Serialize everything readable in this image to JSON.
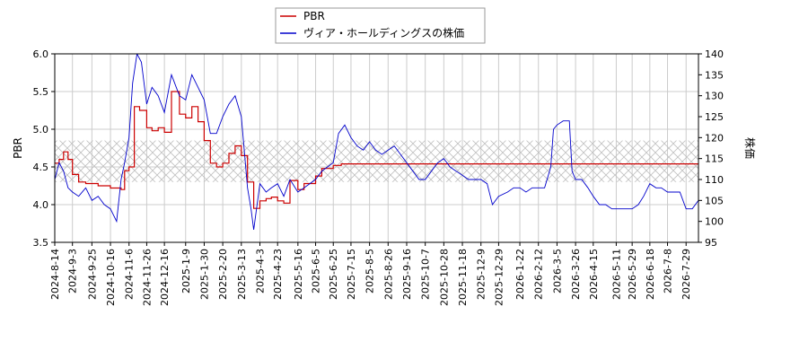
{
  "chart_data": {
    "type": "line",
    "title": "",
    "legend": {
      "placement": "top-center",
      "entries": [
        {
          "label": "PBR",
          "color": "#cc0000"
        },
        {
          "label": "ヴィア・ホールディングスの株価",
          "color": "#0000cc"
        }
      ]
    },
    "ylabel_left": "PBR",
    "ylabel_right": "株価",
    "ylim_left": [
      3.5,
      6.0
    ],
    "ylim_right": [
      95,
      140
    ],
    "yticks_left": [
      "3.5",
      "4.0",
      "4.5",
      "5.0",
      "5.5",
      "6.0"
    ],
    "yticks_right": [
      "95",
      "100",
      "105",
      "110",
      "115",
      "120",
      "125",
      "130",
      "135",
      "140"
    ],
    "xlim": [
      "2024-08-14",
      "2026-08-12"
    ],
    "xticks": [
      "2024-8-14",
      "2024-9-3",
      "2024-9-25",
      "2024-10-16",
      "2024-11-6",
      "2024-11-26",
      "2024-12-16",
      "2025-1-9",
      "2025-1-30",
      "2025-2-20",
      "2025-3-13",
      "2025-4-3",
      "2025-4-23",
      "2025-5-16",
      "2025-6-5",
      "2025-6-25",
      "2025-7-15",
      "2025-8-5",
      "2025-8-26",
      "2025-9-16",
      "2025-10-7",
      "2025-10-28",
      "2025-11-18",
      "2025-12-9",
      "2025-12-29",
      "2026-1-22",
      "2026-2-12",
      "2026-3-5",
      "2026-3-26",
      "2026-4-15",
      "2026-5-11",
      "2026-5-29",
      "2026-6-18",
      "2026-7-8",
      "2026-7-29"
    ],
    "grid": true,
    "band": {
      "axis": "left",
      "range": [
        4.3,
        4.85
      ],
      "pattern": "crosshatch"
    },
    "series": [
      {
        "name": "PBR",
        "axis": "left",
        "color": "#cc0000",
        "points": [
          [
            "2024-08-14",
            4.55
          ],
          [
            "2024-08-19",
            4.6
          ],
          [
            "2024-08-24",
            4.7
          ],
          [
            "2024-08-29",
            4.6
          ],
          [
            "2024-09-03",
            4.4
          ],
          [
            "2024-09-10",
            4.3
          ],
          [
            "2024-09-18",
            4.28
          ],
          [
            "2024-10-02",
            4.25
          ],
          [
            "2024-10-16",
            4.22
          ],
          [
            "2024-10-28",
            4.2
          ],
          [
            "2024-11-01",
            4.45
          ],
          [
            "2024-11-06",
            4.5
          ],
          [
            "2024-11-12",
            5.3
          ],
          [
            "2024-11-18",
            5.25
          ],
          [
            "2024-11-26",
            5.02
          ],
          [
            "2024-12-02",
            4.98
          ],
          [
            "2024-12-09",
            5.02
          ],
          [
            "2024-12-16",
            4.96
          ],
          [
            "2024-12-24",
            5.5
          ],
          [
            "2025-01-02",
            5.2
          ],
          [
            "2025-01-09",
            5.15
          ],
          [
            "2025-01-16",
            5.3
          ],
          [
            "2025-01-23",
            5.1
          ],
          [
            "2025-01-30",
            4.85
          ],
          [
            "2025-02-06",
            4.55
          ],
          [
            "2025-02-13",
            4.5
          ],
          [
            "2025-02-20",
            4.55
          ],
          [
            "2025-02-27",
            4.68
          ],
          [
            "2025-03-06",
            4.78
          ],
          [
            "2025-03-13",
            4.65
          ],
          [
            "2025-03-20",
            4.3
          ],
          [
            "2025-03-27",
            3.95
          ],
          [
            "2025-04-03",
            4.05
          ],
          [
            "2025-04-10",
            4.08
          ],
          [
            "2025-04-16",
            4.1
          ],
          [
            "2025-04-23",
            4.05
          ],
          [
            "2025-04-30",
            4.02
          ],
          [
            "2025-05-07",
            4.32
          ],
          [
            "2025-05-16",
            4.2
          ],
          [
            "2025-05-23",
            4.28
          ],
          [
            "2025-06-05",
            4.38
          ],
          [
            "2025-06-12",
            4.48
          ],
          [
            "2025-06-25",
            4.52
          ],
          [
            "2025-07-04",
            4.54
          ],
          [
            "2025-07-15",
            4.54
          ],
          [
            "2026-08-12",
            4.54
          ]
        ]
      },
      {
        "name": "ヴィア・ホールディングスの株価",
        "axis": "right",
        "color": "#0000cc",
        "points": [
          [
            "2024-08-14",
            110
          ],
          [
            "2024-08-19",
            114
          ],
          [
            "2024-08-24",
            112
          ],
          [
            "2024-08-29",
            108
          ],
          [
            "2024-09-03",
            107
          ],
          [
            "2024-09-10",
            106
          ],
          [
            "2024-09-18",
            108
          ],
          [
            "2024-09-25",
            105
          ],
          [
            "2024-10-02",
            106
          ],
          [
            "2024-10-09",
            104
          ],
          [
            "2024-10-16",
            103
          ],
          [
            "2024-10-23",
            100
          ],
          [
            "2024-10-28",
            110
          ],
          [
            "2024-11-01",
            114
          ],
          [
            "2024-11-06",
            120
          ],
          [
            "2024-11-10",
            133
          ],
          [
            "2024-11-15",
            140
          ],
          [
            "2024-11-20",
            138
          ],
          [
            "2024-11-26",
            128
          ],
          [
            "2024-12-02",
            132
          ],
          [
            "2024-12-09",
            130
          ],
          [
            "2024-12-16",
            126
          ],
          [
            "2024-12-24",
            135
          ],
          [
            "2025-01-02",
            130
          ],
          [
            "2025-01-09",
            129
          ],
          [
            "2025-01-16",
            135
          ],
          [
            "2025-01-23",
            132
          ],
          [
            "2025-01-30",
            129
          ],
          [
            "2025-02-06",
            121
          ],
          [
            "2025-02-13",
            121
          ],
          [
            "2025-02-20",
            125
          ],
          [
            "2025-02-27",
            128
          ],
          [
            "2025-03-06",
            130
          ],
          [
            "2025-03-13",
            125
          ],
          [
            "2025-03-20",
            108
          ],
          [
            "2025-03-24",
            103
          ],
          [
            "2025-03-27",
            98
          ],
          [
            "2025-04-03",
            109
          ],
          [
            "2025-04-10",
            107
          ],
          [
            "2025-04-16",
            108
          ],
          [
            "2025-04-23",
            109
          ],
          [
            "2025-04-30",
            106
          ],
          [
            "2025-05-07",
            110
          ],
          [
            "2025-05-16",
            107
          ],
          [
            "2025-05-23",
            108
          ],
          [
            "2025-06-05",
            110
          ],
          [
            "2025-06-12",
            112
          ],
          [
            "2025-06-25",
            114
          ],
          [
            "2025-07-01",
            121
          ],
          [
            "2025-07-08",
            123
          ],
          [
            "2025-07-15",
            120
          ],
          [
            "2025-07-22",
            118
          ],
          [
            "2025-07-29",
            117
          ],
          [
            "2025-08-05",
            119
          ],
          [
            "2025-08-12",
            117
          ],
          [
            "2025-08-19",
            116
          ],
          [
            "2025-08-26",
            117
          ],
          [
            "2025-09-02",
            118
          ],
          [
            "2025-09-09",
            116
          ],
          [
            "2025-09-16",
            114
          ],
          [
            "2025-09-23",
            112
          ],
          [
            "2025-09-30",
            110
          ],
          [
            "2025-10-07",
            110
          ],
          [
            "2025-10-14",
            112
          ],
          [
            "2025-10-21",
            114
          ],
          [
            "2025-10-28",
            115
          ],
          [
            "2025-11-04",
            113
          ],
          [
            "2025-11-11",
            112
          ],
          [
            "2025-11-18",
            111
          ],
          [
            "2025-11-25",
            110
          ],
          [
            "2025-12-02",
            110
          ],
          [
            "2025-12-09",
            110
          ],
          [
            "2025-12-16",
            109
          ],
          [
            "2025-12-22",
            104
          ],
          [
            "2025-12-29",
            106
          ],
          [
            "2026-01-08",
            107
          ],
          [
            "2026-01-15",
            108
          ],
          [
            "2026-01-22",
            108
          ],
          [
            "2026-01-29",
            107
          ],
          [
            "2026-02-05",
            108
          ],
          [
            "2026-02-12",
            108
          ],
          [
            "2026-02-19",
            108
          ],
          [
            "2026-02-26",
            113
          ],
          [
            "2026-03-01",
            122
          ],
          [
            "2026-03-05",
            123
          ],
          [
            "2026-03-12",
            124
          ],
          [
            "2026-03-19",
            124
          ],
          [
            "2026-03-22",
            112
          ],
          [
            "2026-03-26",
            110
          ],
          [
            "2026-04-02",
            110
          ],
          [
            "2026-04-09",
            108
          ],
          [
            "2026-04-15",
            106
          ],
          [
            "2026-04-22",
            104
          ],
          [
            "2026-04-29",
            104
          ],
          [
            "2026-05-06",
            103
          ],
          [
            "2026-05-11",
            103
          ],
          [
            "2026-05-18",
            103
          ],
          [
            "2026-05-29",
            103
          ],
          [
            "2026-06-05",
            104
          ],
          [
            "2026-06-11",
            106
          ],
          [
            "2026-06-18",
            109
          ],
          [
            "2026-06-25",
            108
          ],
          [
            "2026-07-01",
            108
          ],
          [
            "2026-07-08",
            107
          ],
          [
            "2026-07-15",
            107
          ],
          [
            "2026-07-22",
            107
          ],
          [
            "2026-07-29",
            103
          ],
          [
            "2026-08-05",
            103
          ],
          [
            "2026-08-12",
            105
          ]
        ]
      }
    ]
  }
}
